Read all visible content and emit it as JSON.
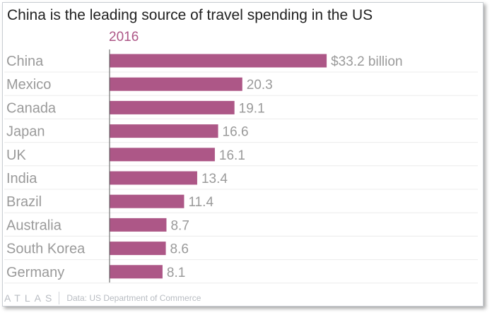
{
  "title": "China is the leading source of travel spending in the US",
  "footer": {
    "brand": "ATLAS",
    "source": "Data: US Department of Commerce"
  },
  "colors": {
    "bar": "#ad5787",
    "series_label": "#ad5787",
    "label_text": "#9a9a9a",
    "gridline": "#ececec",
    "axis": "#555555"
  },
  "chart_data": {
    "type": "bar",
    "orientation": "horizontal",
    "title": "China is the leading source of travel spending in the US",
    "series": [
      {
        "name": "2016",
        "values": [
          33.2,
          20.3,
          19.1,
          16.6,
          16.1,
          13.4,
          11.4,
          8.7,
          8.6,
          8.1
        ]
      }
    ],
    "categories": [
      "China",
      "Mexico",
      "Canada",
      "Japan",
      "UK",
      "India",
      "Brazil",
      "Australia",
      "South Korea",
      "Germany"
    ],
    "value_labels": [
      "$33.2 billion",
      "20.3",
      "19.1",
      "16.6",
      "16.1",
      "13.4",
      "11.4",
      "8.7",
      "8.6",
      "8.1"
    ],
    "xlim": [
      0,
      40
    ],
    "grid": true,
    "legend": "none"
  }
}
